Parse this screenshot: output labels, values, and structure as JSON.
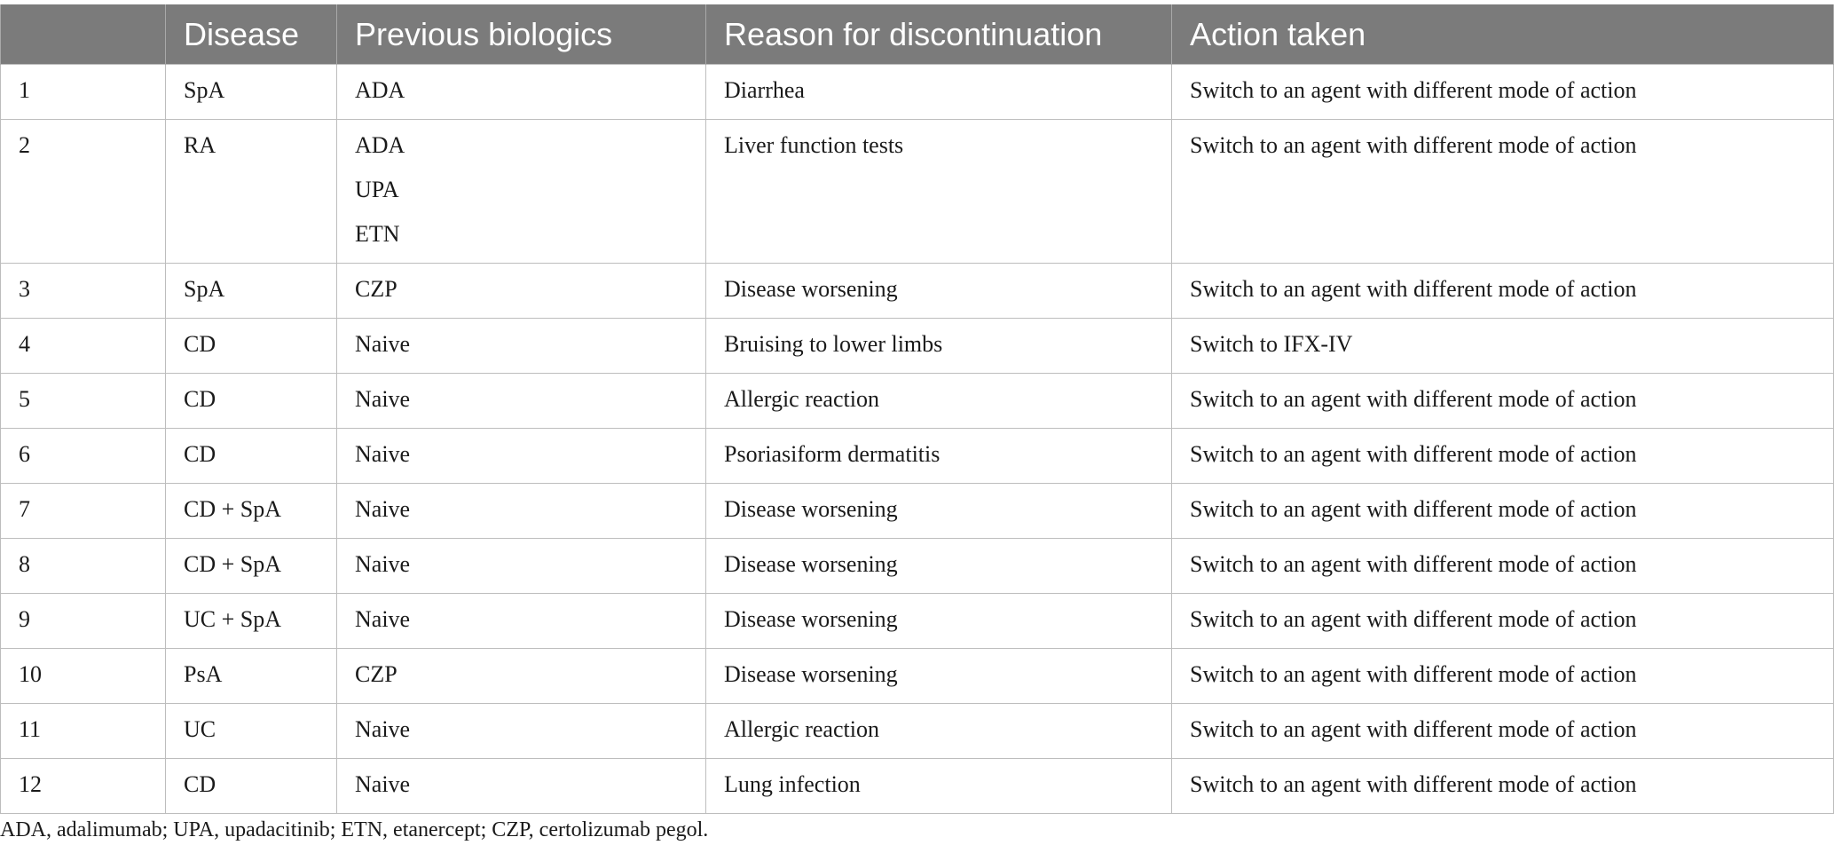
{
  "table": {
    "headers": [
      "",
      "Disease",
      "Previous biologics",
      "Reason for discontinuation",
      "Action taken"
    ],
    "rows": [
      {
        "id": "1",
        "disease": "SpA",
        "biologics": [
          "ADA"
        ],
        "reason": "Diarrhea",
        "action": "Switch to an agent with different mode of action"
      },
      {
        "id": "2",
        "disease": "RA",
        "biologics": [
          "ADA",
          "UPA",
          "ETN"
        ],
        "reason": "Liver function tests",
        "action": "Switch to an agent with different mode of action"
      },
      {
        "id": "3",
        "disease": "SpA",
        "biologics": [
          "CZP"
        ],
        "reason": "Disease worsening",
        "action": "Switch to an agent with different mode of action"
      },
      {
        "id": "4",
        "disease": "CD",
        "biologics": [
          "Naive"
        ],
        "reason": "Bruising to lower limbs",
        "action": "Switch to IFX-IV"
      },
      {
        "id": "5",
        "disease": "CD",
        "biologics": [
          "Naive"
        ],
        "reason": "Allergic reaction",
        "action": "Switch to an agent with different mode of action"
      },
      {
        "id": "6",
        "disease": "CD",
        "biologics": [
          "Naive"
        ],
        "reason": "Psoriasiform dermatitis",
        "action": "Switch to an agent with different mode of action"
      },
      {
        "id": "7",
        "disease": "CD + SpA",
        "biologics": [
          "Naive"
        ],
        "reason": "Disease worsening",
        "action": "Switch to an agent with different mode of action"
      },
      {
        "id": "8",
        "disease": "CD + SpA",
        "biologics": [
          "Naive"
        ],
        "reason": "Disease worsening",
        "action": "Switch to an agent with different mode of action"
      },
      {
        "id": "9",
        "disease": "UC + SpA",
        "biologics": [
          "Naive"
        ],
        "reason": "Disease worsening",
        "action": "Switch to an agent with different mode of action"
      },
      {
        "id": "10",
        "disease": "PsA",
        "biologics": [
          "CZP"
        ],
        "reason": "Disease worsening",
        "action": "Switch to an agent with different mode of action"
      },
      {
        "id": "11",
        "disease": "UC",
        "biologics": [
          "Naive"
        ],
        "reason": "Allergic reaction",
        "action": "Switch to an agent with different mode of action"
      },
      {
        "id": "12",
        "disease": "CD",
        "biologics": [
          "Naive"
        ],
        "reason": "Lung infection",
        "action": "Switch to an agent with different mode of action"
      }
    ]
  },
  "footnote": "ADA, adalimumab; UPA, upadacitinib; ETN, etanercept; CZP, certolizumab pegol.",
  "colors": {
    "header_background": "#7b7b7b",
    "header_text": "#ffffff",
    "grid_line": "#bdbdbd"
  }
}
